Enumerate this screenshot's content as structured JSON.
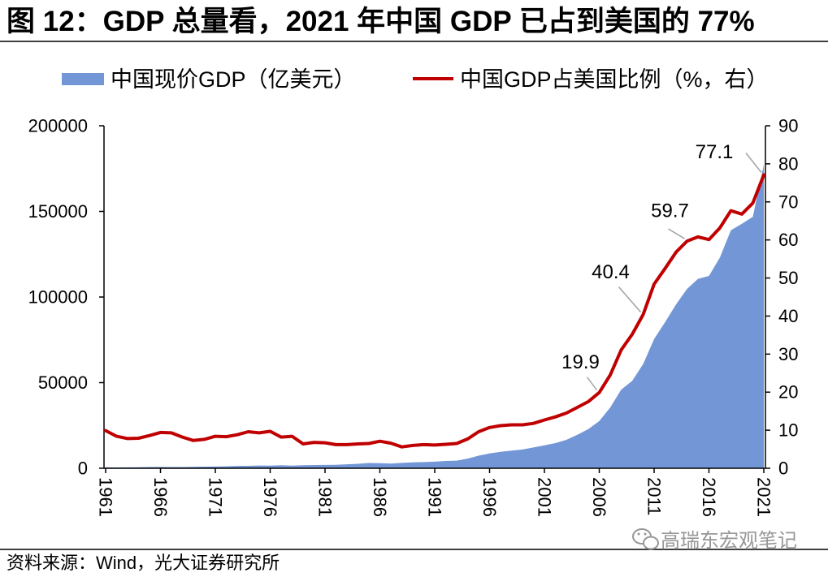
{
  "source": "资料来源：Wind，光大证券研究所",
  "watermark": {
    "text": "高瑞东宏观笔记",
    "icon": "wechat-icon"
  },
  "colors": {
    "gdp_area": "#7396D6",
    "ratio_line": "#C00000",
    "leader_line": "#A6A6A6",
    "axis": "#000000",
    "watermark": "#8C8C8C"
  },
  "chart_data": {
    "type": "area",
    "title": "图 12：GDP 总量看，2021 年中国 GDP 已占到美国的 77%",
    "x": [
      1961,
      1962,
      1963,
      1964,
      1965,
      1966,
      1967,
      1968,
      1969,
      1970,
      1971,
      1972,
      1973,
      1974,
      1975,
      1976,
      1977,
      1978,
      1979,
      1980,
      1981,
      1982,
      1983,
      1984,
      1985,
      1986,
      1987,
      1988,
      1989,
      1990,
      1991,
      1992,
      1993,
      1994,
      1995,
      1996,
      1997,
      1998,
      1999,
      2000,
      2001,
      2002,
      2003,
      2004,
      2005,
      2006,
      2007,
      2008,
      2009,
      2010,
      2011,
      2012,
      2013,
      2014,
      2015,
      2016,
      2017,
      2018,
      2019,
      2020,
      2021
    ],
    "x_ticks": [
      "1961",
      "1966",
      "1971",
      "1976",
      "1981",
      "1986",
      "1991",
      "1996",
      "2001",
      "2006",
      "2011",
      "2016",
      "2021"
    ],
    "series": [
      {
        "name": "中国现价GDP（亿美元）",
        "type": "area",
        "values": [
          501,
          472,
          507,
          597,
          704,
          767,
          729,
          709,
          797,
          926,
          998,
          1137,
          1385,
          1442,
          1634,
          1539,
          1749,
          1495,
          1783,
          1911,
          1959,
          2051,
          2307,
          2600,
          3095,
          3008,
          2730,
          3124,
          3478,
          3609,
          3834,
          4269,
          4447,
          5643,
          7345,
          8638,
          9616,
          10290,
          10940,
          12114,
          13394,
          14706,
          16603,
          19554,
          22860,
          27521,
          35503,
          45943,
          51017,
          60872,
          75516,
          85322,
          95705,
          104757,
          110616,
          112333,
          123105,
          138949,
          142800,
          146877,
          177341
        ]
      },
      {
        "name": "中国GDP占美国比例（%，右）",
        "type": "line",
        "values": [
          9.9,
          8.4,
          7.8,
          7.9,
          8.6,
          9.4,
          9.3,
          8.2,
          7.3,
          7.6,
          8.4,
          8.3,
          8.8,
          9.6,
          9.3,
          9.7,
          8.2,
          8.4,
          6.4,
          6.8,
          6.7,
          6.2,
          6.2,
          6.4,
          6.5,
          7.1,
          6.6,
          5.6,
          6.0,
          6.2,
          6.1,
          6.3,
          6.5,
          7.7,
          9.6,
          10.7,
          11.2,
          11.4,
          11.4,
          11.8,
          12.7,
          13.5,
          14.5,
          16.0,
          17.5,
          19.9,
          24.5,
          31.1,
          35.2,
          40.4,
          48.4,
          52.5,
          56.8,
          59.7,
          60.8,
          60.1,
          63.2,
          67.7,
          66.8,
          69.7,
          77.1
        ]
      }
    ],
    "y_left": {
      "ticks": [
        "0",
        "50000",
        "100000",
        "150000",
        "200000"
      ],
      "ylim": [
        0,
        200000
      ]
    },
    "y_right": {
      "ticks": [
        "0",
        "10",
        "20",
        "30",
        "40",
        "50",
        "60",
        "70",
        "80",
        "90"
      ],
      "ylim": [
        0,
        90
      ]
    },
    "annotations": [
      {
        "x": 2006,
        "label": "19.9"
      },
      {
        "x": 2010,
        "label": "40.4"
      },
      {
        "x": 2014,
        "label": "59.7"
      },
      {
        "x": 2021,
        "label": "77.1"
      }
    ],
    "legend_position": "top",
    "grid": false
  }
}
